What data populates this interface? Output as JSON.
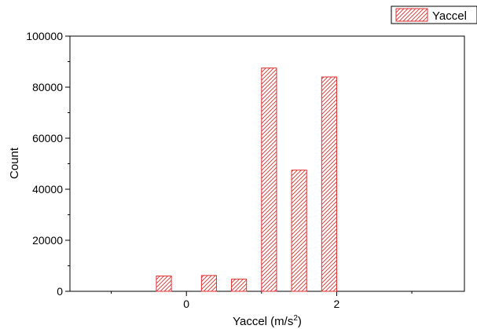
{
  "chart_data": {
    "type": "bar",
    "title": "",
    "xlabel": "Yaccel (m/s",
    "xlabel_superscript": "2",
    "xlabel_close": ")",
    "ylabel": "Count",
    "xlim": [
      -1.55,
      3.7
    ],
    "ylim": [
      0,
      100000
    ],
    "x_ticks": [
      "0",
      "2"
    ],
    "y_ticks": [
      "0",
      "20000",
      "40000",
      "60000",
      "80000",
      "100000"
    ],
    "bar_width": 0.2,
    "series": [
      {
        "name": "Yaccel",
        "color": "#e03030",
        "fill_pattern": "diagonal-hatch",
        "x": [
          -0.3,
          0.3,
          0.7,
          1.1,
          1.5,
          1.9
        ],
        "values": [
          6000,
          6200,
          4800,
          87500,
          47500,
          84000
        ]
      }
    ],
    "legend": {
      "position": "top-right",
      "entries": [
        "Yaccel"
      ]
    },
    "grid": false
  }
}
